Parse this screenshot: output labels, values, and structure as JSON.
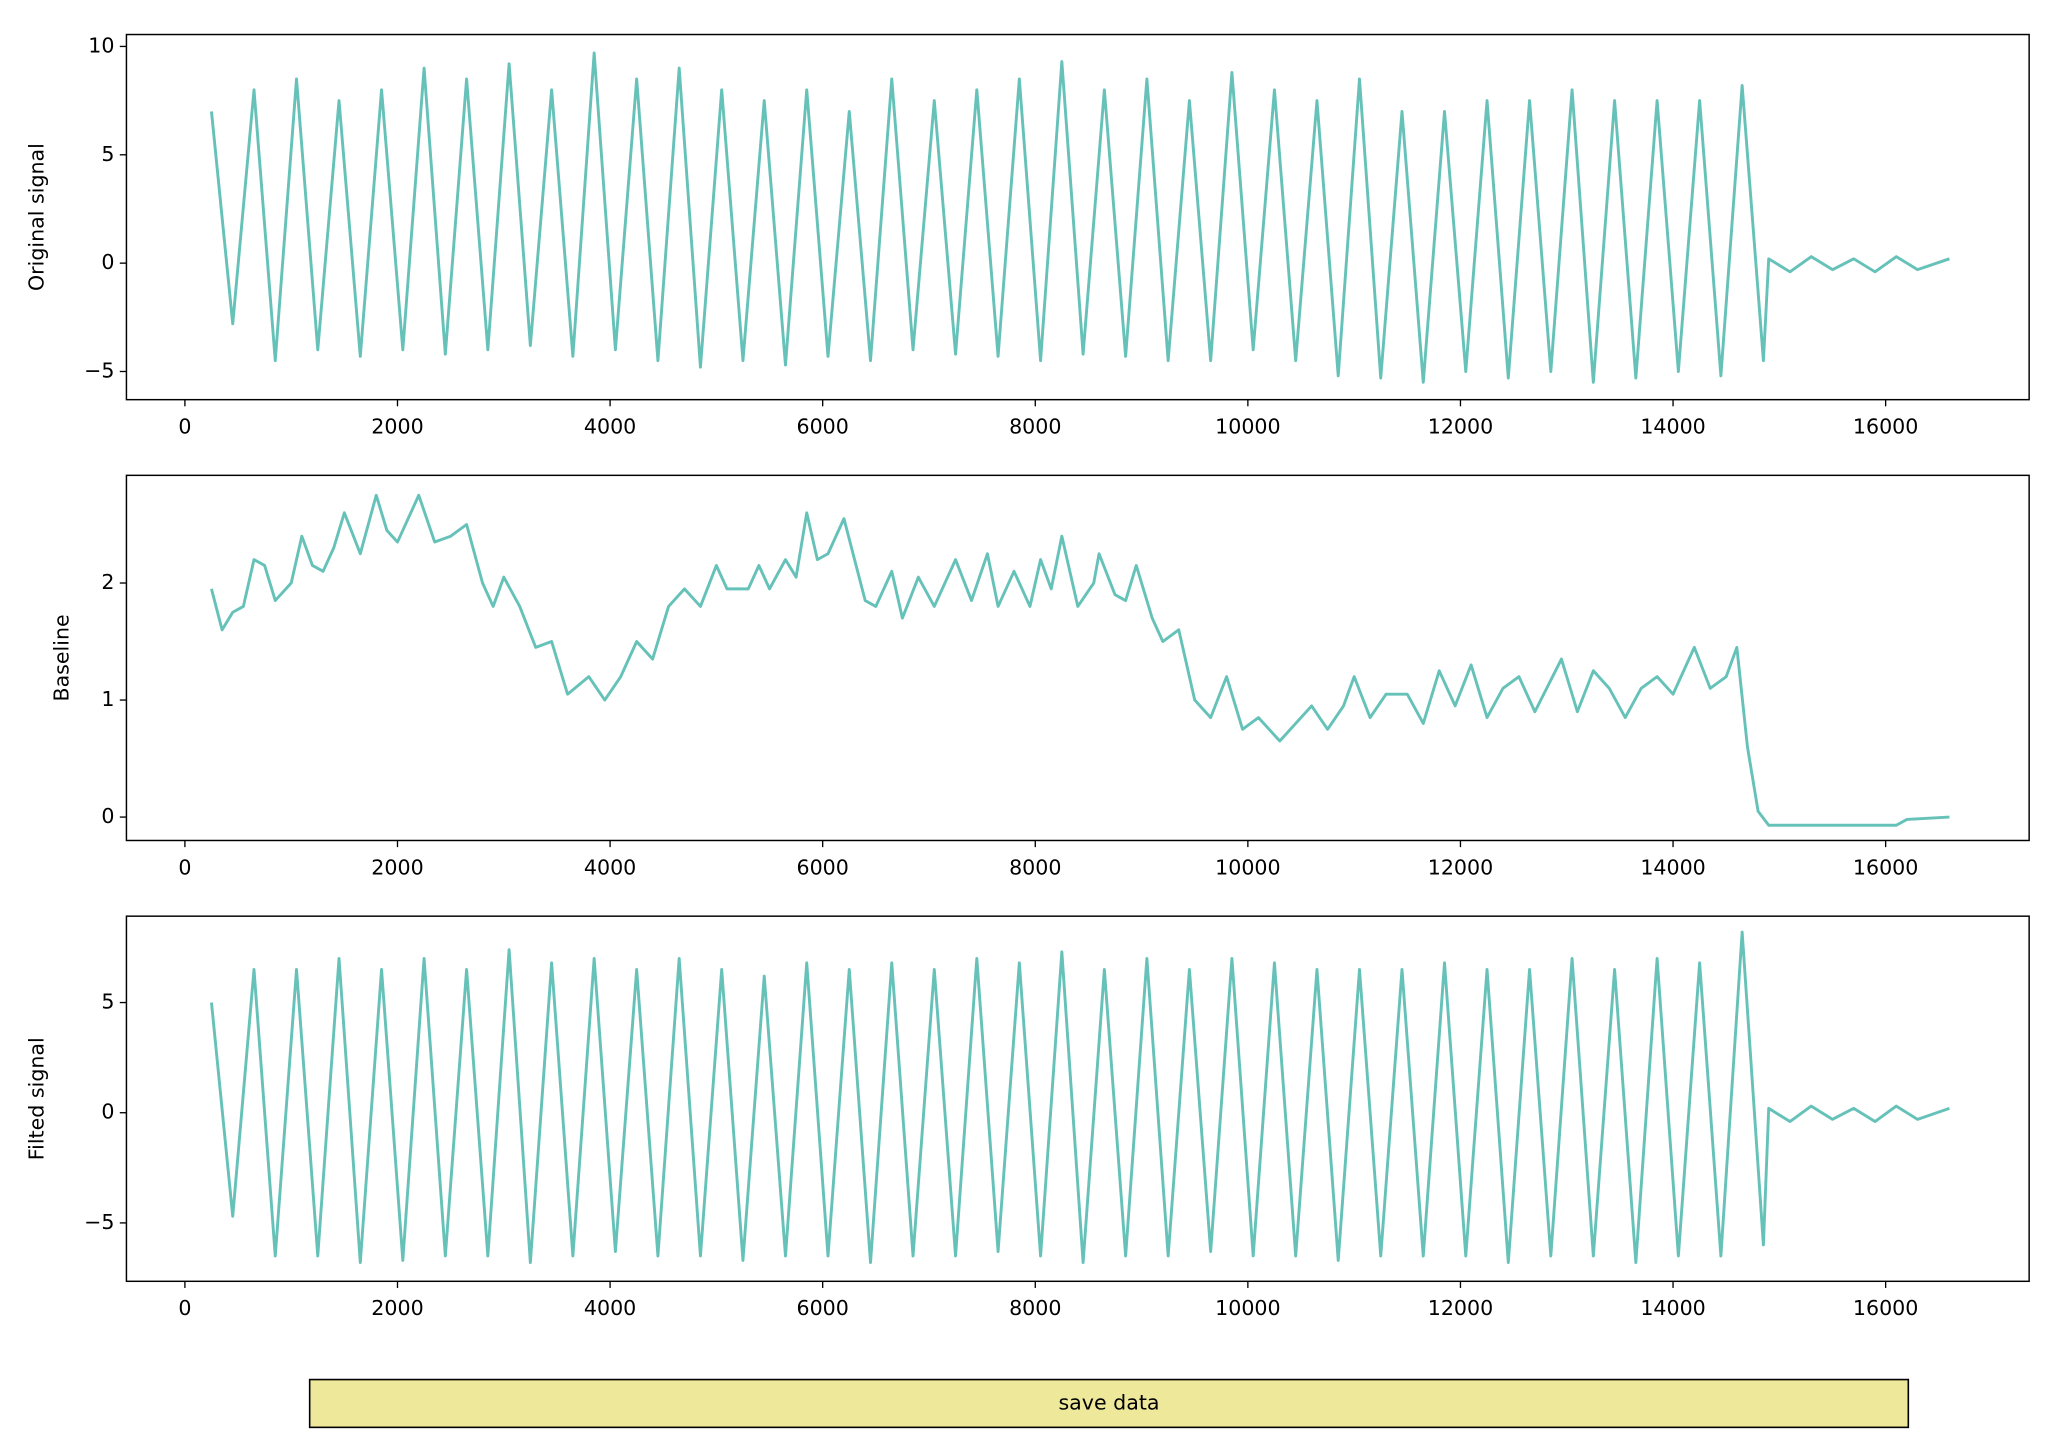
{
  "chart_data": [
    {
      "type": "line",
      "ylabel": "Original signal",
      "color": "#66c2b9",
      "xlim": [
        -550,
        17350
      ],
      "ylim": [
        -6.3,
        10.55
      ],
      "xticks": [
        0,
        2000,
        4000,
        6000,
        8000,
        10000,
        12000,
        14000,
        16000
      ],
      "yticks": [
        {
          "value": -5,
          "label": "−5"
        },
        0,
        5,
        10
      ],
      "x": [
        250,
        450,
        650,
        850,
        1050,
        1250,
        1450,
        1650,
        1850,
        2050,
        2250,
        2450,
        2650,
        2850,
        3050,
        3250,
        3450,
        3650,
        3850,
        4050,
        4250,
        4450,
        4650,
        4850,
        5050,
        5250,
        5450,
        5650,
        5850,
        6050,
        6250,
        6450,
        6650,
        6850,
        7050,
        7250,
        7450,
        7650,
        7850,
        8050,
        8250,
        8450,
        8650,
        8850,
        9050,
        9250,
        9450,
        9650,
        9850,
        10050,
        10250,
        10450,
        10650,
        10850,
        11050,
        11250,
        11450,
        11650,
        11850,
        12050,
        12250,
        12450,
        12650,
        12850,
        13050,
        13250,
        13450,
        13650,
        13850,
        14050,
        14250,
        14450,
        14650,
        14850,
        14900,
        15100,
        15300,
        15500,
        15700,
        15900,
        16100,
        16300,
        16600
      ],
      "values": [
        7,
        -2.8,
        8,
        -4.5,
        8.5,
        -4,
        7.5,
        -4.3,
        8,
        -4,
        9,
        -4.2,
        8.5,
        -4,
        9.2,
        -3.8,
        8,
        -4.3,
        9.7,
        -4,
        8.5,
        -4.5,
        9,
        -4.8,
        8,
        -4.5,
        7.5,
        -4.7,
        8,
        -4.3,
        7,
        -4.5,
        8.5,
        -4,
        7.5,
        -4.2,
        8,
        -4.3,
        8.5,
        -4.5,
        9.3,
        -4.2,
        8,
        -4.3,
        8.5,
        -4.5,
        7.5,
        -4.5,
        8.8,
        -4,
        8,
        -4.5,
        7.5,
        -5.2,
        8.5,
        -5.3,
        7,
        -5.5,
        7,
        -5,
        7.5,
        -5.3,
        7.5,
        -5,
        8,
        -5.5,
        7.5,
        -5.3,
        7.5,
        -5,
        7.5,
        -5.2,
        8.2,
        -4.5,
        0.2,
        -0.4,
        0.3,
        -0.3,
        0.2,
        -0.4,
        0.3,
        -0.3,
        0.2
      ]
    },
    {
      "type": "line",
      "ylabel": "Baseline",
      "color": "#66c2b9",
      "xlim": [
        -550,
        17350
      ],
      "ylim": [
        -0.2,
        2.92
      ],
      "xticks": [
        0,
        2000,
        4000,
        6000,
        8000,
        10000,
        12000,
        14000,
        16000
      ],
      "yticks": [
        0,
        1,
        2
      ],
      "x": [
        250,
        350,
        450,
        550,
        650,
        750,
        850,
        1000,
        1050,
        1100,
        1200,
        1300,
        1400,
        1500,
        1650,
        1800,
        1900,
        2000,
        2200,
        2350,
        2500,
        2650,
        2800,
        2900,
        3000,
        3150,
        3300,
        3450,
        3600,
        3800,
        3950,
        4100,
        4250,
        4400,
        4550,
        4700,
        4850,
        5000,
        5100,
        5300,
        5400,
        5500,
        5650,
        5750,
        5850,
        5950,
        6050,
        6200,
        6300,
        6400,
        6500,
        6650,
        6750,
        6900,
        7050,
        7250,
        7400,
        7550,
        7650,
        7800,
        7950,
        8050,
        8150,
        8250,
        8400,
        8550,
        8600,
        8750,
        8850,
        8950,
        9100,
        9200,
        9350,
        9500,
        9650,
        9800,
        9950,
        10100,
        10300,
        10450,
        10600,
        10750,
        10900,
        11000,
        11150,
        11300,
        11500,
        11650,
        11800,
        11950,
        12100,
        12250,
        12400,
        12550,
        12700,
        12950,
        13100,
        13250,
        13400,
        13550,
        13700,
        13850,
        14000,
        14200,
        14350,
        14500,
        14600,
        14700,
        14800,
        14900,
        16100,
        16200,
        16600
      ],
      "values": [
        1.95,
        1.6,
        1.75,
        1.8,
        2.2,
        2.15,
        1.85,
        2.0,
        2.2,
        2.4,
        2.15,
        2.1,
        2.3,
        2.6,
        2.25,
        2.75,
        2.45,
        2.35,
        2.75,
        2.35,
        2.4,
        2.5,
        2.0,
        1.8,
        2.05,
        1.8,
        1.45,
        1.5,
        1.05,
        1.2,
        1.0,
        1.2,
        1.5,
        1.35,
        1.8,
        1.95,
        1.8,
        2.15,
        1.95,
        1.95,
        2.15,
        1.95,
        2.2,
        2.05,
        2.6,
        2.2,
        2.25,
        2.55,
        2.2,
        1.85,
        1.8,
        2.1,
        1.7,
        2.05,
        1.8,
        2.2,
        1.85,
        2.25,
        1.8,
        2.1,
        1.8,
        2.2,
        1.95,
        2.4,
        1.8,
        2.0,
        2.25,
        1.9,
        1.85,
        2.15,
        1.7,
        1.5,
        1.6,
        1.0,
        0.85,
        1.2,
        0.75,
        0.85,
        0.65,
        0.8,
        0.95,
        0.75,
        0.95,
        1.2,
        0.85,
        1.05,
        1.05,
        0.8,
        1.25,
        0.95,
        1.3,
        0.85,
        1.1,
        1.2,
        0.9,
        1.35,
        0.9,
        1.25,
        1.1,
        0.85,
        1.1,
        1.2,
        1.05,
        1.45,
        1.1,
        1.2,
        1.45,
        0.6,
        0.05,
        -0.07,
        -0.07,
        -0.02,
        0.0
      ]
    },
    {
      "type": "line",
      "ylabel": "Filted signal",
      "color": "#66c2b9",
      "xlim": [
        -550,
        17350
      ],
      "ylim": [
        -7.65,
        8.92
      ],
      "xticks": [
        0,
        2000,
        4000,
        6000,
        8000,
        10000,
        12000,
        14000,
        16000
      ],
      "yticks": [
        {
          "value": -5,
          "label": "−5"
        },
        0,
        5
      ],
      "x": [
        250,
        450,
        650,
        850,
        1050,
        1250,
        1450,
        1650,
        1850,
        2050,
        2250,
        2450,
        2650,
        2850,
        3050,
        3250,
        3450,
        3650,
        3850,
        4050,
        4250,
        4450,
        4650,
        4850,
        5050,
        5250,
        5450,
        5650,
        5850,
        6050,
        6250,
        6450,
        6650,
        6850,
        7050,
        7250,
        7450,
        7650,
        7850,
        8050,
        8250,
        8450,
        8650,
        8850,
        9050,
        9250,
        9450,
        9650,
        9850,
        10050,
        10250,
        10450,
        10650,
        10850,
        11050,
        11250,
        11450,
        11650,
        11850,
        12050,
        12250,
        12450,
        12650,
        12850,
        13050,
        13250,
        13450,
        13650,
        13850,
        14050,
        14250,
        14450,
        14650,
        14850,
        14900,
        15100,
        15300,
        15500,
        15700,
        15900,
        16100,
        16300,
        16600
      ],
      "values": [
        5,
        -4.7,
        6.5,
        -6.5,
        6.5,
        -6.5,
        7,
        -6.8,
        6.5,
        -6.7,
        7,
        -6.5,
        6.5,
        -6.5,
        7.4,
        -6.8,
        6.8,
        -6.5,
        7,
        -6.3,
        6.5,
        -6.5,
        7,
        -6.5,
        6.5,
        -6.7,
        6.2,
        -6.5,
        6.8,
        -6.5,
        6.5,
        -6.8,
        6.8,
        -6.5,
        6.5,
        -6.5,
        7,
        -6.3,
        6.8,
        -6.5,
        7.3,
        -6.8,
        6.5,
        -6.5,
        7,
        -6.5,
        6.5,
        -6.3,
        7,
        -6.5,
        6.8,
        -6.5,
        6.5,
        -6.7,
        6.5,
        -6.5,
        6.5,
        -6.5,
        6.8,
        -6.5,
        6.5,
        -6.8,
        6.5,
        -6.5,
        7,
        -6.5,
        6.5,
        -6.8,
        7,
        -6.5,
        6.8,
        -6.5,
        8.2,
        -6,
        0.2,
        -0.4,
        0.3,
        -0.3,
        0.2,
        -0.4,
        0.3,
        -0.3,
        0.2
      ]
    }
  ],
  "button": {
    "label": "save data"
  }
}
